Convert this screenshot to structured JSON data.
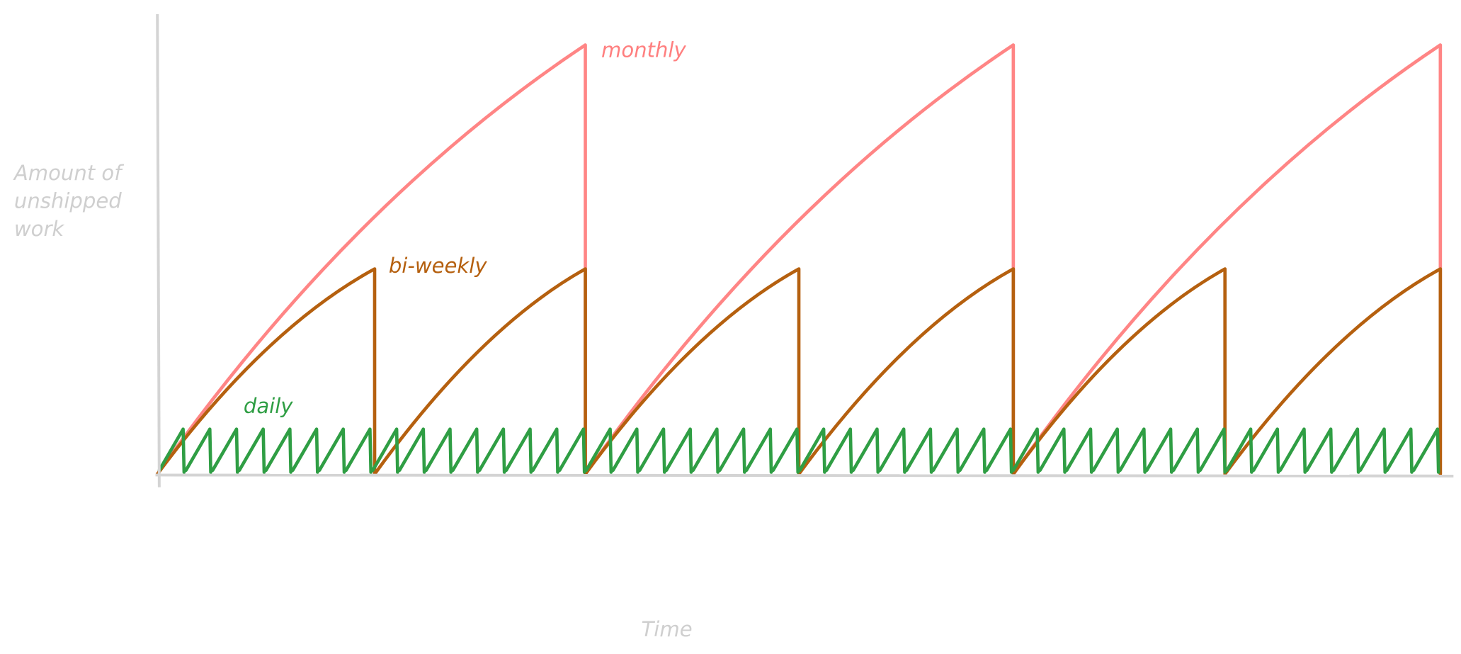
{
  "axes": {
    "y_label": [
      "Amount of",
      "unshipped",
      "work"
    ],
    "x_label": "Time"
  },
  "curves": {
    "monthly": "monthly",
    "biweekly": "bi-weekly",
    "daily": "daily"
  }
}
